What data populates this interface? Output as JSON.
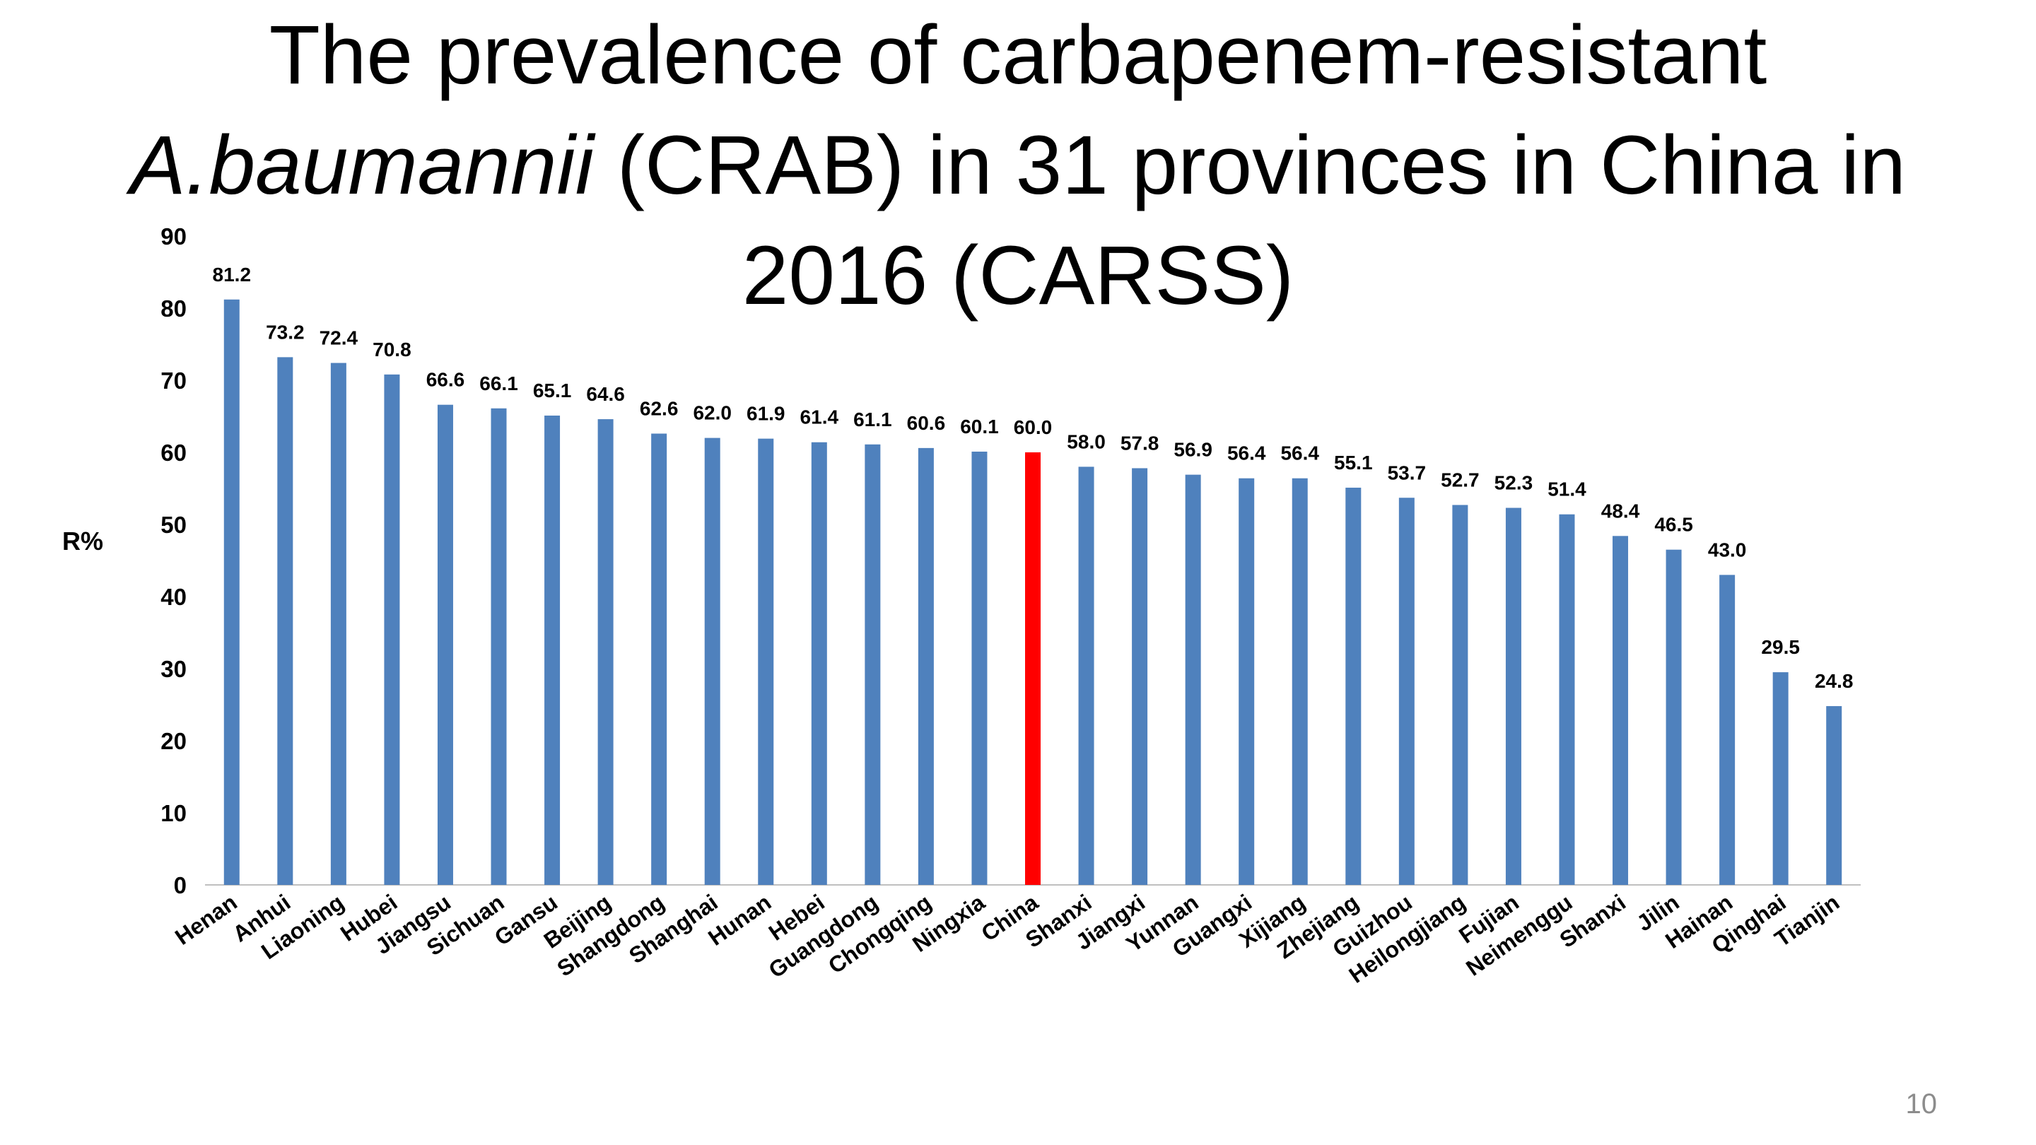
{
  "title": {
    "line1": "The prevalence of carbapenem-resistant",
    "line2_italic": "A.baumannii",
    "line2_rest": " (CRAB) in 31 provinces in China in",
    "line3": "2016 (CARSS)"
  },
  "page_number": "10",
  "chart_data": {
    "type": "bar",
    "title": "The prevalence of carbapenem-resistant A.baumannii (CRAB) in 31 provinces in China in 2016 (CARSS)",
    "xlabel": "",
    "ylabel": "R%",
    "ylim": [
      0,
      90
    ],
    "yticks": [
      0,
      10,
      20,
      30,
      40,
      50,
      60,
      70,
      80,
      90
    ],
    "grid": false,
    "legend": "none",
    "categories": [
      "Henan",
      "Anhui",
      "Liaoning",
      "Hubei",
      "Jiangsu",
      "Sichuan",
      "Gansu",
      "Beijing",
      "Shangdong",
      "Shanghai",
      "Hunan",
      "Hebei",
      "Guangdong",
      "Chongqing",
      "Ningxia",
      "China",
      "Shanxi",
      "Jiangxi",
      "Yunnan",
      "Guangxi",
      "Xijiang",
      "Zhejiang",
      "Guizhou",
      "Heilongjiang",
      "Fujian",
      "Neimenggu",
      "Shanxi",
      "Jilin",
      "Hainan",
      "Qinghai",
      "Tianjin"
    ],
    "values": [
      81.2,
      73.2,
      72.4,
      70.8,
      66.6,
      66.1,
      65.1,
      64.6,
      62.6,
      62.0,
      61.9,
      61.4,
      61.1,
      60.6,
      60.1,
      60.0,
      58.0,
      57.8,
      56.9,
      56.4,
      56.4,
      55.1,
      53.7,
      52.7,
      52.3,
      51.4,
      48.4,
      46.5,
      43.0,
      29.5,
      24.8
    ],
    "data_labels": [
      "81.2",
      "73.2",
      "72.4",
      "70.8",
      "66.6",
      "66.1",
      "65.1",
      "64.6",
      "62.6",
      "62.0",
      "61.9",
      "61.4",
      "61.1",
      "60.6",
      "60.1",
      "60.0",
      "58.0",
      "57.8",
      "56.9",
      "56.4",
      "56.4",
      "55.1",
      "53.7",
      "52.7",
      "52.3",
      "51.4",
      "48.4",
      "46.5",
      "43.0",
      "29.5",
      "24.8"
    ],
    "bar_color": "#4f81bd",
    "highlight_color": "#ff0000",
    "highlight_category": "China"
  }
}
